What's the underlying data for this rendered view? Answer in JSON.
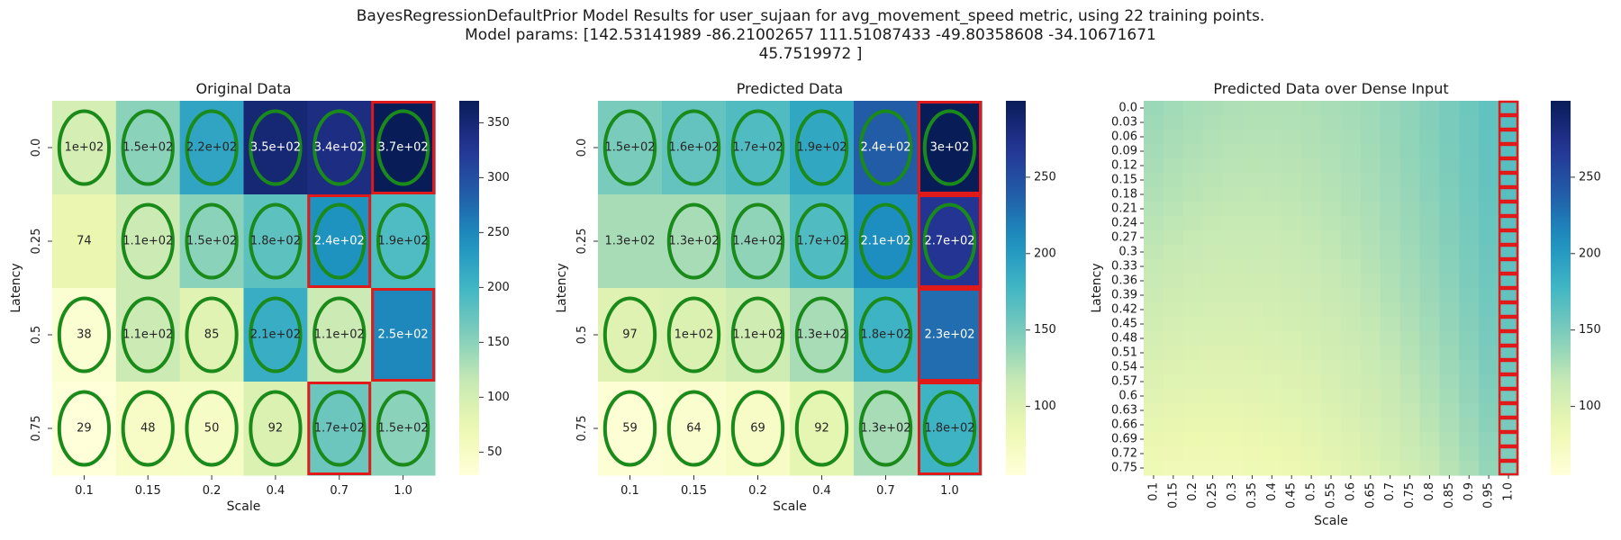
{
  "title_lines": [
    "BayesRegressionDefaultPrior Model Results for user_sujaan for avg_movement_speed metric, using 22 training points.",
    "Model params: [142.53141989 -86.21002657 111.51087433 -49.80358608 -34.10671671",
    "45.7519972 ]"
  ],
  "colors": {
    "colormap": "YlGnBu",
    "ellipse": "#1a8a1a",
    "highlight_box": "#e01a1a"
  },
  "chart_data": [
    {
      "type": "heatmap",
      "title": "Original Data",
      "xlabel": "Scale",
      "ylabel": "Latency",
      "x_ticks": [
        "0.1",
        "0.15",
        "0.2",
        "0.4",
        "0.7",
        "1.0"
      ],
      "y_ticks": [
        "0.0",
        "0.25",
        "0.5",
        "0.75"
      ],
      "values": [
        [
          100,
          150,
          220,
          350,
          340,
          370
        ],
        [
          74,
          110,
          150,
          180,
          240,
          190
        ],
        [
          38,
          110,
          85,
          210,
          110,
          250
        ],
        [
          29,
          48,
          50,
          92,
          170,
          150
        ]
      ],
      "labels": [
        [
          "1e+02",
          "1.5e+02",
          "2.2e+02",
          "3.5e+02",
          "3.4e+02",
          "3.7e+02"
        ],
        [
          "74",
          "1.1e+02",
          "1.5e+02",
          "1.8e+02",
          "2.4e+02",
          "1.9e+02"
        ],
        [
          "38",
          "1.1e+02",
          "85",
          "2.1e+02",
          "1.1e+02",
          "2.5e+02"
        ],
        [
          "29",
          "48",
          "50",
          "92",
          "1.7e+02",
          "1.5e+02"
        ]
      ],
      "ellipses": [
        [
          1,
          1,
          1,
          1,
          1,
          1
        ],
        [
          0,
          1,
          1,
          1,
          1,
          1
        ],
        [
          1,
          1,
          1,
          1,
          1,
          0
        ],
        [
          1,
          1,
          1,
          1,
          1,
          1
        ]
      ],
      "highlights": [
        [
          0,
          0,
          0,
          0,
          0,
          1
        ],
        [
          0,
          0,
          0,
          0,
          1,
          0
        ],
        [
          0,
          0,
          0,
          0,
          0,
          1
        ],
        [
          0,
          0,
          0,
          0,
          1,
          0
        ]
      ],
      "colorbar": {
        "vmin": 29,
        "vmax": 370,
        "ticks": [
          50,
          100,
          150,
          200,
          250,
          300,
          350
        ]
      }
    },
    {
      "type": "heatmap",
      "title": "Predicted Data",
      "xlabel": "Scale",
      "ylabel": "Latency",
      "x_ticks": [
        "0.1",
        "0.15",
        "0.2",
        "0.4",
        "0.7",
        "1.0"
      ],
      "y_ticks": [
        "0.0",
        "0.25",
        "0.5",
        "0.75"
      ],
      "values": [
        [
          150,
          160,
          170,
          190,
          240,
          300
        ],
        [
          130,
          130,
          140,
          170,
          210,
          270
        ],
        [
          97,
          100,
          110,
          130,
          180,
          230
        ],
        [
          59,
          64,
          69,
          92,
          130,
          180
        ]
      ],
      "labels": [
        [
          "1.5e+02",
          "1.6e+02",
          "1.7e+02",
          "1.9e+02",
          "2.4e+02",
          "3e+02"
        ],
        [
          "1.3e+02",
          "1.3e+02",
          "1.4e+02",
          "1.7e+02",
          "2.1e+02",
          "2.7e+02"
        ],
        [
          "97",
          "1e+02",
          "1.1e+02",
          "1.3e+02",
          "1.8e+02",
          "2.3e+02"
        ],
        [
          "59",
          "64",
          "69",
          "92",
          "1.3e+02",
          "1.8e+02"
        ]
      ],
      "ellipses": [
        [
          1,
          1,
          1,
          1,
          1,
          1
        ],
        [
          0,
          1,
          1,
          1,
          1,
          1
        ],
        [
          1,
          1,
          1,
          1,
          1,
          0
        ],
        [
          1,
          1,
          1,
          1,
          1,
          1
        ]
      ],
      "highlights": [
        [
          0,
          0,
          0,
          0,
          0,
          1
        ],
        [
          0,
          0,
          0,
          0,
          0,
          1
        ],
        [
          0,
          0,
          0,
          0,
          0,
          1
        ],
        [
          0,
          0,
          0,
          0,
          0,
          1
        ]
      ],
      "colorbar": {
        "vmin": 55,
        "vmax": 300,
        "ticks": [
          100,
          150,
          200,
          250
        ]
      }
    },
    {
      "type": "heatmap",
      "title": "Predicted Data over Dense Input",
      "xlabel": "Scale",
      "ylabel": "Latency",
      "x_ticks": [
        "0.1",
        "0.15",
        "0.2",
        "0.25",
        "0.3",
        "0.35",
        "0.4",
        "0.45",
        "0.5",
        "0.55",
        "0.6",
        "0.65",
        "0.7",
        "0.75",
        "0.8",
        "0.85",
        "0.9",
        "0.95",
        "1.0"
      ],
      "y_ticks": [
        "0.0",
        "0.03",
        "0.06",
        "0.09",
        "0.12",
        "0.15",
        "0.18",
        "0.21",
        "0.24",
        "0.27",
        "0.3",
        "0.33",
        "0.36",
        "0.39",
        "0.42",
        "0.45",
        "0.48",
        "0.51",
        "0.54",
        "0.57",
        "0.6",
        "0.63",
        "0.66",
        "0.69",
        "0.72",
        "0.75"
      ],
      "model_params": [
        142.53141989,
        -86.21002657,
        111.51087433,
        -49.80358608,
        -34.10671671,
        45.7519972
      ],
      "highlight_last_column": true,
      "colorbar": {
        "vmin": 55,
        "vmax": 300,
        "ticks": [
          100,
          150,
          200,
          250
        ]
      }
    }
  ]
}
